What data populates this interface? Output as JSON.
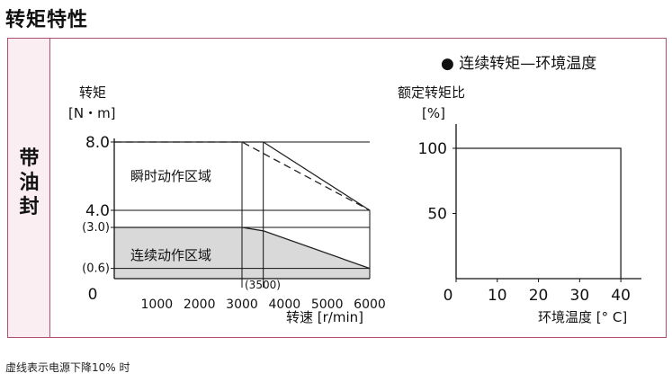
{
  "page": {
    "title": "转矩特性",
    "side_label": [
      "带",
      "油",
      "封"
    ],
    "footnote": "虚线表示电源下降10% 时"
  },
  "chart_data": [
    {
      "type": "area",
      "title": "",
      "ylabel_line1": "转矩",
      "ylabel_line2": "[N・m]",
      "xlabel": "转速 [r/min]",
      "xlim": [
        0,
        6000
      ],
      "ylim": [
        0,
        8.0
      ],
      "x_ticks": [
        1000,
        2000,
        3000,
        4000,
        5000,
        6000
      ],
      "x_zero_label": "0",
      "y_ticks": [
        {
          "value": 8.0,
          "label": "8.0"
        },
        {
          "value": 4.0,
          "label": "4.0"
        },
        {
          "value": 3.0,
          "label": "(3.0)"
        },
        {
          "value": 0.6,
          "label": "(0.6)"
        }
      ],
      "x_annotation": "(3500)",
      "regions": [
        {
          "name": "瞬时动作区域"
        },
        {
          "name": "连续动作区域"
        }
      ],
      "series": [
        {
          "style": "solid",
          "x": [
            0,
            3500,
            6000
          ],
          "y": [
            8.0,
            8.0,
            4.0
          ]
        },
        {
          "style": "dashed",
          "x": [
            0,
            3000,
            6000
          ],
          "y": [
            8.0,
            8.0,
            4.0
          ]
        },
        {
          "style": "solid",
          "x": [
            0,
            3000,
            3500,
            6000
          ],
          "y": [
            3.0,
            3.0,
            2.8,
            0.6
          ]
        }
      ],
      "fill_color": "#d9d9d9"
    },
    {
      "type": "line",
      "title": "● 连续转矩—环境温度",
      "ylabel_line1": "额定转矩比",
      "ylabel_line2": "[%]",
      "xlabel": "环境温度 [° C]",
      "xlim": [
        0,
        45
      ],
      "ylim": [
        0,
        120
      ],
      "x_ticks": [
        0,
        10,
        20,
        30,
        40
      ],
      "y_ticks": [
        {
          "value": 100,
          "label": "100"
        },
        {
          "value": 50,
          "label": "50"
        }
      ],
      "series": [
        {
          "style": "solid",
          "x": [
            0,
            40,
            40
          ],
          "y": [
            100,
            100,
            0
          ]
        }
      ]
    }
  ]
}
